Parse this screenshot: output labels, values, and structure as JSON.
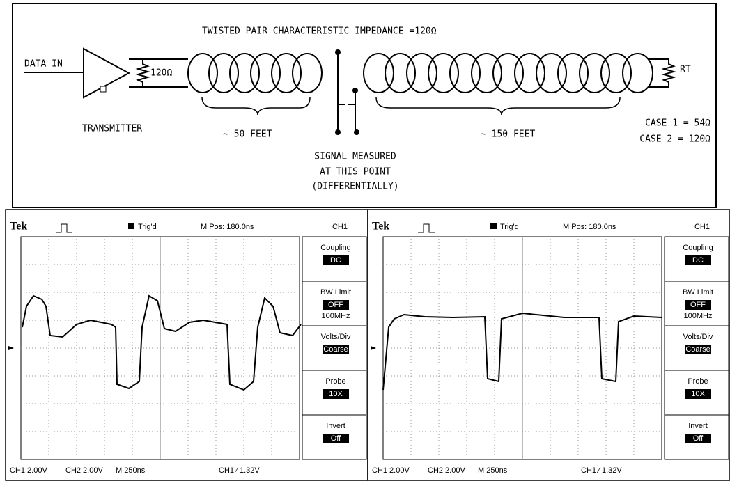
{
  "diagram": {
    "title": "TWISTED PAIR CHARACTERISTIC IMPEDANCE =120Ω",
    "data_in": "DATA IN",
    "source_resistor": "120Ω",
    "transmitter": "TRANSMITTER",
    "short_length": "~ 50 FEET",
    "long_length": "~ 150 FEET",
    "measure_note": [
      "SIGNAL MEASURED",
      "AT THIS POINT",
      "(DIFFERENTIALLY)"
    ],
    "terminator": "RT",
    "cases": [
      "CASE 1 = 54Ω",
      "CASE 2 = 120Ω"
    ]
  },
  "scopes": [
    {
      "brand": "Tek",
      "trigger": "Trig'd",
      "position": "M Pos: 180.0ns",
      "channel": "CH1",
      "menu": [
        {
          "label": "Coupling",
          "value": "DC"
        },
        {
          "label": "BW Limit",
          "value": "OFF",
          "note": "100MHz"
        },
        {
          "label": "Volts/Div",
          "value": "Coarse"
        },
        {
          "label": "Probe",
          "value": "10X"
        },
        {
          "label": "Invert",
          "value": "Off"
        }
      ],
      "footer": [
        "CH1  2.00V",
        "CH2  2.00V",
        "M 250ns",
        "CH1 ⁄ 1.32V"
      ]
    },
    {
      "brand": "Tek",
      "trigger": "Trig'd",
      "position": "M Pos: 180.0ns",
      "channel": "CH1",
      "menu": [
        {
          "label": "Coupling",
          "value": "DC"
        },
        {
          "label": "BW Limit",
          "value": "OFF",
          "note": "100MHz"
        },
        {
          "label": "Volts/Div",
          "value": "Coarse"
        },
        {
          "label": "Probe",
          "value": "10X"
        },
        {
          "label": "Invert",
          "value": "Off"
        }
      ],
      "footer": [
        "CH1  2.00V",
        "CH2  2.00V",
        "M 250ns",
        "CH1 ⁄ 1.32V"
      ]
    }
  ]
}
